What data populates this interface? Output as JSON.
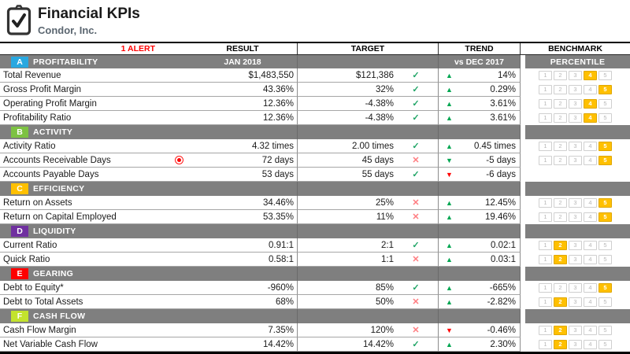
{
  "header": {
    "title": "Financial KPIs",
    "subtitle": "Condor, Inc."
  },
  "columns": {
    "alert": "1 ALERT",
    "result": "RESULT",
    "target": "TARGET",
    "trend": "TREND",
    "benchmark": "BENCHMARK"
  },
  "subheaders": {
    "result_period": "JAN 2018",
    "trend_period": "vs DEC 2017",
    "benchmark": "PERCENTILE"
  },
  "icons": {
    "logo": "clipboard-check-icon",
    "met": "check-icon",
    "missed": "cross-icon",
    "alert": "alert-dot-icon",
    "up": "triangle-up-icon",
    "down": "triangle-down-icon"
  },
  "glyphs": {
    "check": "✓",
    "cross": "✕",
    "up": "▲",
    "down": "▼"
  },
  "colors": {
    "section_bar": "#7f7f7f",
    "highlight": "#ffc000",
    "alert": "#ff0000",
    "check_green": "#21a567",
    "cross_red": "#ff7c80",
    "trend_up_green": "#00a651",
    "trend_down_red": "#ff0000"
  },
  "percentile_scale": [
    "1",
    "2",
    "3",
    "4",
    "5"
  ],
  "sections": [
    {
      "letter": "A",
      "name": "PROFITABILITY",
      "color": "#29a8e0",
      "rows": [
        {
          "label": "Total Revenue",
          "result": "$1,483,550",
          "target": "$121,386",
          "met": true,
          "trend_dir": "up",
          "trend_good": true,
          "trend": "14%",
          "percentile": 4,
          "alert": false
        },
        {
          "label": "Gross Profit Margin",
          "result": "43.36%",
          "target": "32%",
          "met": true,
          "trend_dir": "up",
          "trend_good": true,
          "trend": "0.29%",
          "percentile": 5,
          "alert": false
        },
        {
          "label": "Operating Profit Margin",
          "result": "12.36%",
          "target": "-4.38%",
          "met": true,
          "trend_dir": "up",
          "trend_good": true,
          "trend": "3.61%",
          "percentile": 4,
          "alert": false
        },
        {
          "label": "Profitability Ratio",
          "result": "12.36%",
          "target": "-4.38%",
          "met": true,
          "trend_dir": "up",
          "trend_good": true,
          "trend": "3.61%",
          "percentile": 4,
          "alert": false
        }
      ]
    },
    {
      "letter": "B",
      "name": "ACTIVITY",
      "color": "#7dc242",
      "rows": [
        {
          "label": "Activity Ratio",
          "result": "4.32 times",
          "target": "2.00 times",
          "met": true,
          "trend_dir": "up",
          "trend_good": true,
          "trend": "0.45 times",
          "percentile": 5,
          "alert": false
        },
        {
          "label": "Accounts Receivable Days",
          "result": "72 days",
          "target": "45 days",
          "met": false,
          "trend_dir": "down",
          "trend_good": true,
          "trend": "-5 days",
          "percentile": 5,
          "alert": true
        },
        {
          "label": "Accounts Payable Days",
          "result": "53 days",
          "target": "55 days",
          "met": true,
          "trend_dir": "down",
          "trend_good": false,
          "trend": "-6 days",
          "percentile": null,
          "alert": false
        }
      ]
    },
    {
      "letter": "C",
      "name": "EFFICIENCY",
      "color": "#ffc000",
      "rows": [
        {
          "label": "Return on Assets",
          "result": "34.46%",
          "target": "25%",
          "met": false,
          "trend_dir": "up",
          "trend_good": true,
          "trend": "12.45%",
          "percentile": 5,
          "alert": false
        },
        {
          "label": "Return on Capital Employed",
          "result": "53.35%",
          "target": "11%",
          "met": false,
          "trend_dir": "up",
          "trend_good": true,
          "trend": "19.46%",
          "percentile": 5,
          "alert": false
        }
      ]
    },
    {
      "letter": "D",
      "name": "LIQUIDITY",
      "color": "#7030a0",
      "rows": [
        {
          "label": "Current Ratio",
          "result": "0.91:1",
          "target": "2:1",
          "met": true,
          "trend_dir": "up",
          "trend_good": true,
          "trend": "0.02:1",
          "percentile": 2,
          "alert": false
        },
        {
          "label": "Quick Ratio",
          "result": "0.58:1",
          "target": "1:1",
          "met": false,
          "trend_dir": "up",
          "trend_good": true,
          "trend": "0.03:1",
          "percentile": 2,
          "alert": false
        }
      ]
    },
    {
      "letter": "E",
      "name": "GEARING",
      "color": "#fe0000",
      "rows": [
        {
          "label": "Debt to Equity*",
          "result": "-960%",
          "target": "85%",
          "met": true,
          "trend_dir": "up",
          "trend_good": true,
          "trend": "-665%",
          "percentile": 5,
          "alert": false
        },
        {
          "label": "Debt to Total Assets",
          "result": "68%",
          "target": "50%",
          "met": false,
          "trend_dir": "up",
          "trend_good": true,
          "trend": "-2.82%",
          "percentile": 2,
          "alert": false
        }
      ]
    },
    {
      "letter": "F",
      "name": "CASH FLOW",
      "color": "#c3e32d",
      "rows": [
        {
          "label": "Cash Flow Margin",
          "result": "7.35%",
          "target": "120%",
          "met": false,
          "trend_dir": "down",
          "trend_good": false,
          "trend": "-0.46%",
          "percentile": 2,
          "alert": false
        },
        {
          "label": "Net Variable Cash Flow",
          "result": "14.42%",
          "target": "14.42%",
          "met": true,
          "trend_dir": "up",
          "trend_good": true,
          "trend": "2.30%",
          "percentile": 2,
          "alert": false
        }
      ]
    }
  ]
}
